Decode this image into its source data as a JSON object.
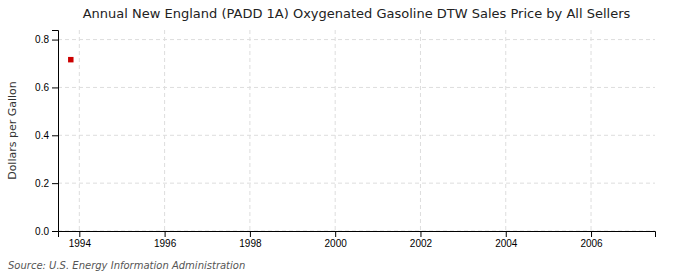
{
  "chart_data": {
    "type": "scatter",
    "title": "Annual New England (PADD 1A) Oxygenated Gasoline DTW Sales Price by All Sellers",
    "ylabel": "Dollars per Gallon",
    "source": "Source: U.S. Energy Information Administration",
    "x": [
      1993.8
    ],
    "values": [
      0.716
    ],
    "color": "#cc0000",
    "marker": "square",
    "xlim": [
      1993.5,
      2007.5
    ],
    "ylim": [
      0.0,
      0.84
    ],
    "xticks": [
      1994,
      1996,
      1998,
      2000,
      2002,
      2004,
      2006
    ],
    "yticks": [
      {
        "value": 0.0,
        "label": "0.0"
      },
      0.2,
      0.4,
      0.6,
      0.8
    ],
    "grid": true
  }
}
